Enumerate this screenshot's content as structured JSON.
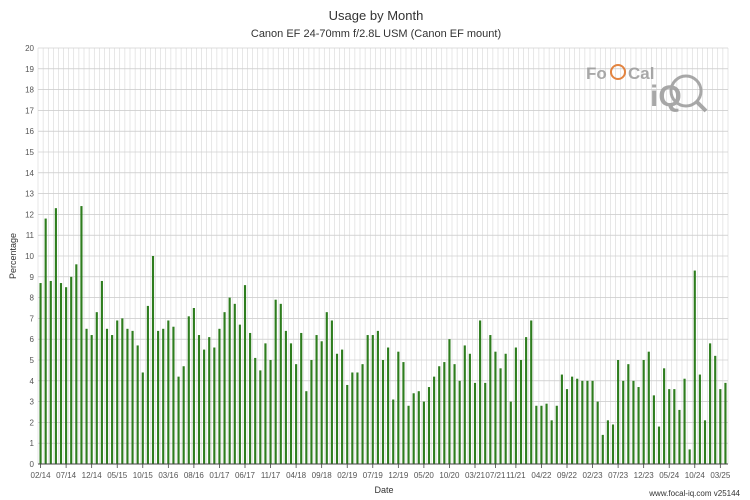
{
  "chart_data": {
    "type": "bar",
    "title": "Usage by Month",
    "subtitle": "Canon EF 24-70mm f/2.8L USM (Canon EF mount)",
    "xlabel": "Date",
    "ylabel": "Percentage",
    "ylim": [
      0,
      20
    ],
    "yticks": [
      0,
      1,
      2,
      3,
      4,
      5,
      6,
      7,
      8,
      9,
      10,
      11,
      12,
      13,
      14,
      15,
      16,
      17,
      18,
      19,
      20
    ],
    "grid": true,
    "bar_color": "#2e7d1e",
    "categories": [
      "02/14",
      "03/14",
      "04/14",
      "05/14",
      "06/14",
      "07/14",
      "08/14",
      "09/14",
      "10/14",
      "11/14",
      "12/14",
      "01/15",
      "02/15",
      "03/15",
      "04/15",
      "05/15",
      "06/15",
      "07/15",
      "08/15",
      "09/15",
      "10/15",
      "11/15",
      "12/15",
      "01/16",
      "02/16",
      "03/16",
      "04/16",
      "05/16",
      "06/16",
      "07/16",
      "08/16",
      "09/16",
      "10/16",
      "11/16",
      "12/16",
      "01/17",
      "02/17",
      "03/17",
      "04/17",
      "05/17",
      "06/17",
      "07/17",
      "08/17",
      "09/17",
      "10/17",
      "11/17",
      "12/17",
      "01/18",
      "02/18",
      "03/18",
      "04/18",
      "05/18",
      "06/18",
      "07/18",
      "08/18",
      "09/18",
      "10/18",
      "11/18",
      "12/18",
      "01/19",
      "02/19",
      "03/19",
      "04/19",
      "05/19",
      "06/19",
      "07/19",
      "08/19",
      "09/19",
      "10/19",
      "11/19",
      "12/19",
      "01/20",
      "02/20",
      "03/20",
      "04/20",
      "05/20",
      "06/20",
      "07/20",
      "08/20",
      "09/20",
      "10/20",
      "11/20",
      "12/20",
      "01/21",
      "02/21",
      "03/21",
      "04/21",
      "05/21",
      "06/21",
      "07/21",
      "08/21",
      "09/21",
      "10/21",
      "11/21",
      "12/21",
      "01/22",
      "02/22",
      "03/22",
      "04/22",
      "05/22",
      "06/22",
      "07/22",
      "08/22",
      "09/22",
      "10/22",
      "11/22",
      "12/22",
      "01/23",
      "02/23",
      "03/23",
      "04/23",
      "05/23",
      "06/23",
      "07/23",
      "08/23",
      "09/23",
      "10/23",
      "11/23",
      "12/23",
      "01/24",
      "02/24",
      "03/24",
      "04/24",
      "05/24",
      "06/24",
      "07/24",
      "08/24",
      "09/24",
      "10/24",
      "11/24",
      "12/24",
      "01/25",
      "02/25",
      "03/25",
      "04/25"
    ],
    "values": [
      8.7,
      11.8,
      8.8,
      12.3,
      8.7,
      8.5,
      9.0,
      9.6,
      12.4,
      6.5,
      6.2,
      7.3,
      8.8,
      6.5,
      6.2,
      6.9,
      7.0,
      6.5,
      6.4,
      5.7,
      4.4,
      7.6,
      10.0,
      6.4,
      6.5,
      6.9,
      6.6,
      4.2,
      4.7,
      7.1,
      7.5,
      6.2,
      5.5,
      6.1,
      5.6,
      6.5,
      7.3,
      8.0,
      7.7,
      6.7,
      8.6,
      6.3,
      5.1,
      4.5,
      5.8,
      5.0,
      7.9,
      7.7,
      6.4,
      5.8,
      4.8,
      6.3,
      3.5,
      5.0,
      6.2,
      5.9,
      7.3,
      6.9,
      5.3,
      5.5,
      3.8,
      4.4,
      4.4,
      4.8,
      6.2,
      6.2,
      6.4,
      5.0,
      5.6,
      3.1,
      5.4,
      4.9,
      2.8,
      3.4,
      3.5,
      3.0,
      3.7,
      4.2,
      4.7,
      4.9,
      6.0,
      4.8,
      4.0,
      5.7,
      5.3,
      3.9,
      6.9,
      3.9,
      6.2,
      5.4,
      4.6,
      5.3,
      3.0,
      5.6,
      5.0,
      6.1,
      6.9,
      2.8,
      2.8,
      2.9,
      2.1,
      2.8,
      4.3,
      3.6,
      4.2,
      4.1,
      4.0,
      4.0,
      4.0,
      3.0,
      1.4,
      2.1,
      1.9,
      5.0,
      4.0,
      4.8,
      4.0,
      3.7,
      5.0,
      5.4,
      3.3,
      1.8,
      4.6,
      3.6,
      3.6,
      2.6,
      4.1,
      0.7,
      9.3,
      4.3,
      2.1,
      5.8,
      5.2,
      3.6,
      3.9
    ],
    "xtick_labels": [
      {
        "label": "02/14",
        "index": 0
      },
      {
        "label": "07/14",
        "index": 5
      },
      {
        "label": "12/14",
        "index": 10
      },
      {
        "label": "05/15",
        "index": 15
      },
      {
        "label": "10/15",
        "index": 20
      },
      {
        "label": "03/16",
        "index": 25
      },
      {
        "label": "08/16",
        "index": 30
      },
      {
        "label": "01/17",
        "index": 35
      },
      {
        "label": "06/17",
        "index": 40
      },
      {
        "label": "11/17",
        "index": 45
      },
      {
        "label": "04/18",
        "index": 50
      },
      {
        "label": "09/18",
        "index": 55
      },
      {
        "label": "02/19",
        "index": 60
      },
      {
        "label": "07/19",
        "index": 65
      },
      {
        "label": "12/19",
        "index": 70
      },
      {
        "label": "05/20",
        "index": 75
      },
      {
        "label": "10/20",
        "index": 80
      },
      {
        "label": "03/21",
        "index": 85
      },
      {
        "label": "07/21",
        "index": 89
      },
      {
        "label": "11/21",
        "index": 93
      },
      {
        "label": "04/22",
        "index": 98
      },
      {
        "label": "09/22",
        "index": 103
      },
      {
        "label": "02/23",
        "index": 108
      },
      {
        "label": "07/23",
        "index": 113
      },
      {
        "label": "12/23",
        "index": 118
      },
      {
        "label": "05/24",
        "index": 123
      },
      {
        "label": "10/24",
        "index": 128
      },
      {
        "label": "03/25",
        "index": 133
      }
    ]
  },
  "logo": {
    "text_left": "Fo",
    "text_mid": "Cal",
    "text_right": "iQ",
    "accent_color": "#e07020",
    "color": "#9a9a9a"
  },
  "footer": "www.focal-iq.com  v25144"
}
